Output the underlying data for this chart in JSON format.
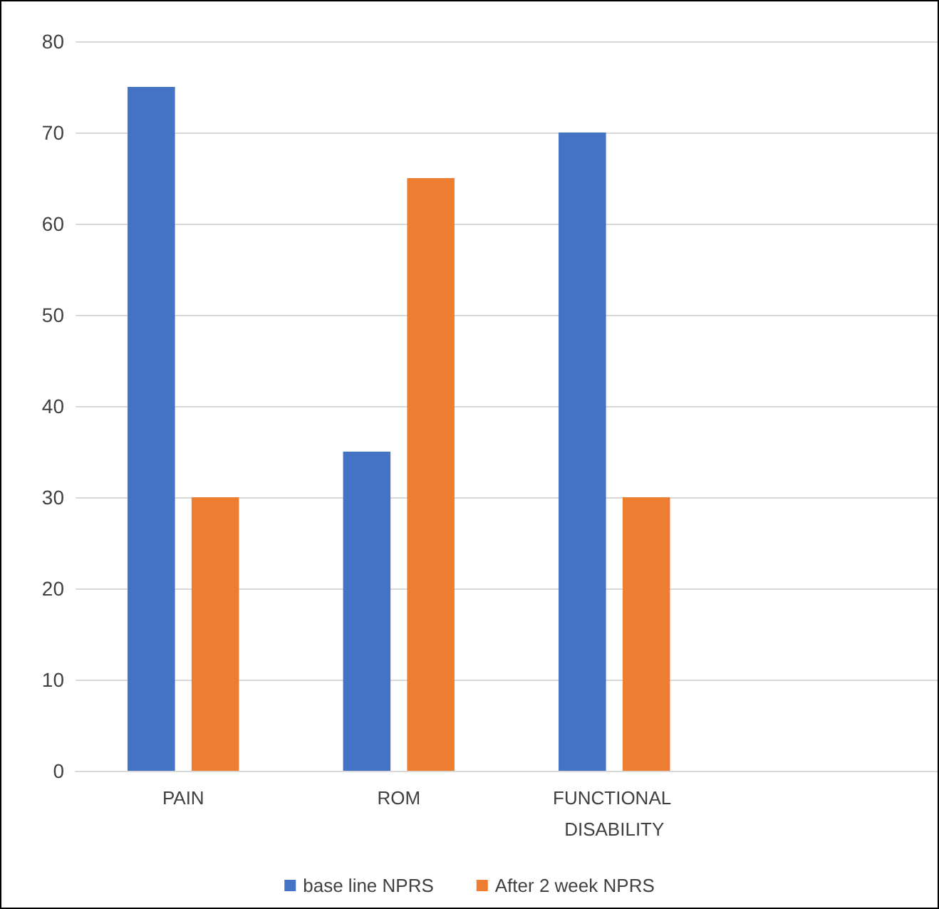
{
  "chart_data": {
    "type": "bar",
    "categories": [
      "PAIN",
      "ROM",
      "FUNCTIONAL DISABILITY",
      null
    ],
    "series": [
      {
        "name": "base line NPRS",
        "color": "#4472c4",
        "values": [
          75,
          35,
          70,
          null
        ]
      },
      {
        "name": "After 2 week NPRS",
        "color": "#ed7d31",
        "values": [
          30,
          65,
          30,
          null
        ]
      }
    ],
    "ylim": [
      0,
      80
    ],
    "yticks": [
      0,
      10,
      20,
      30,
      40,
      50,
      60,
      70,
      80
    ],
    "grid": "y",
    "legend": "bottom"
  }
}
